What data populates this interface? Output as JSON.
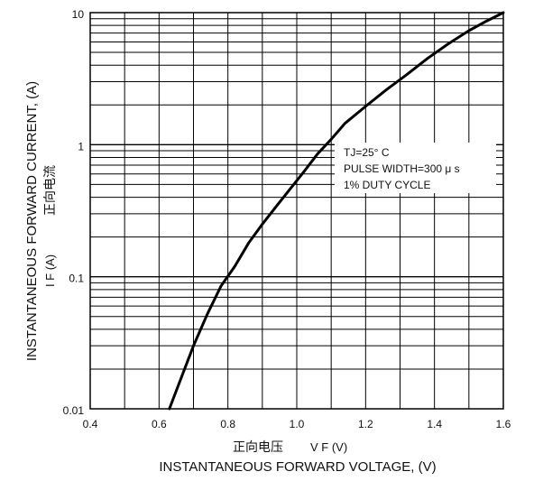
{
  "chart_data": {
    "type": "line",
    "xscale": "linear",
    "yscale": "log",
    "xlim": [
      0.4,
      1.6
    ],
    "ylim": [
      0.01,
      10
    ],
    "x_ticks": [
      0.4,
      0.6,
      0.8,
      1.0,
      1.2,
      1.4,
      1.6
    ],
    "x_tick_labels": [
      "0.4",
      "0.6",
      "0.8",
      "1.0",
      "1.2",
      "1.4",
      "1.6"
    ],
    "y_tick_labels": [
      "0.01",
      "0.1",
      "1",
      "10"
    ],
    "ylabel_en": "INSTANTANEOUS FORWARD CURRENT, (A)",
    "ylabel_zh": "正向电流",
    "ylabel_sym": "I F (A)",
    "xlabel_zh": "正向电压",
    "xlabel_sym": "V F (V)",
    "xlabel_en": "INSTANTANEOUS FORWARD VOLTAGE, (V)",
    "annotations": [
      "TJ=25° C",
      "PULSE WIDTH=300 μ s",
      "1% DUTY CYCLE"
    ],
    "grid": true,
    "series": [
      {
        "x": [
          0.63,
          0.66,
          0.7,
          0.74,
          0.78,
          0.82,
          0.86,
          0.9,
          0.94,
          0.98,
          1.02,
          1.06,
          1.1,
          1.14,
          1.2,
          1.26,
          1.32,
          1.38,
          1.44,
          1.5,
          1.55,
          1.6
        ],
        "y": [
          0.01,
          0.016,
          0.03,
          0.052,
          0.085,
          0.12,
          0.18,
          0.25,
          0.34,
          0.46,
          0.62,
          0.85,
          1.1,
          1.45,
          1.95,
          2.6,
          3.4,
          4.5,
          5.8,
          7.3,
          8.6,
          10
        ]
      }
    ]
  }
}
